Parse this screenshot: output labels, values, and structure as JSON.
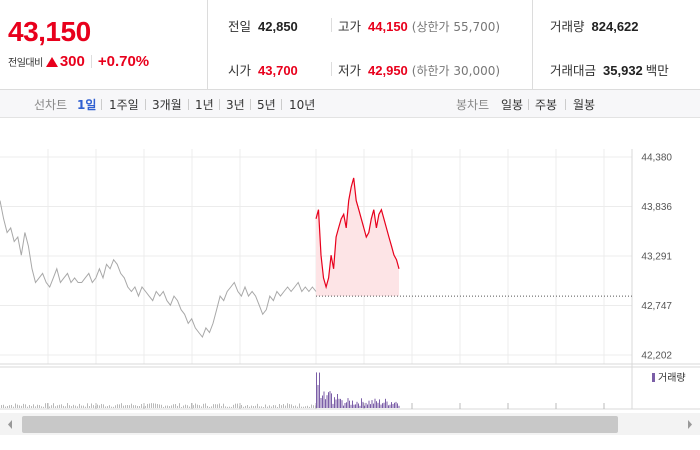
{
  "summary": {
    "price": "43,150",
    "change_label": "전일대비",
    "change_amount": "300",
    "change_percent": "+0.70%",
    "prev_close": {
      "label": "전일",
      "value": "42,850"
    },
    "open": {
      "label": "시가",
      "value": "43,700"
    },
    "high": {
      "label": "고가",
      "value": "44,150",
      "sub": "(상한가 55,700)"
    },
    "low": {
      "label": "저가",
      "value": "42,950",
      "sub": "(하한가 30,000)"
    },
    "volume": {
      "label": "거래량",
      "value": "824,622"
    },
    "trade_value": {
      "label": "거래대금",
      "value": "35,932",
      "unit": "백만"
    }
  },
  "toolbar": {
    "line_chart_label": "선차트",
    "periods": [
      "1일",
      "1주일",
      "3개월",
      "1년",
      "3년",
      "5년",
      "10년"
    ],
    "active_period": "1일",
    "candle_chart_label": "봉차트",
    "candle_periods": [
      "일봉",
      "주봉",
      "월봉"
    ]
  },
  "colors": {
    "up": "#e8001c",
    "active_tab": "#2f5fd1",
    "volume": "#7b5ea7",
    "line_prior": "#a8a8a8"
  },
  "chart_data": {
    "type": "line",
    "y_ticks": [
      "44,380",
      "43,836",
      "43,291",
      "42,747",
      "42,202"
    ],
    "ylim": [
      42202,
      44380
    ],
    "baseline": 42850,
    "volume_legend": "거래량",
    "grid": true,
    "series": [
      {
        "values": [
          43900,
          43700,
          43550,
          43600,
          43450,
          43500,
          43300,
          43550,
          43400,
          43150,
          43000,
          43050,
          43100,
          43000,
          42950,
          43050,
          43150,
          43000,
          43050,
          43100,
          43000,
          43050,
          43000,
          43000,
          43050,
          43100,
          43000,
          43050,
          43150,
          43050,
          43200,
          43150,
          43250,
          43200,
          43100,
          43050,
          42950,
          42900,
          42950,
          42850,
          42950,
          42900,
          42850,
          42800,
          42900,
          42850,
          42900,
          42800,
          42750,
          42850,
          42800,
          42700,
          42650,
          42550,
          42600,
          42500,
          42450,
          42400,
          42500,
          42450,
          42550,
          42700,
          42850,
          42800,
          42900,
          42950,
          43000,
          42900,
          42850,
          42950,
          42850,
          42900,
          42850,
          42750,
          42650,
          42700,
          42850,
          42800,
          42900,
          42850,
          42900,
          42950,
          42900,
          42950,
          43000,
          42900,
          42950,
          42900,
          42950,
          42900
        ]
      },
      {
        "values": [
          43700,
          43800,
          43300,
          43050,
          42950,
          43050,
          43300,
          43150,
          43500,
          43600,
          43700,
          43750,
          43600,
          43900,
          44050,
          44150,
          43900,
          43800,
          43700,
          43600,
          43500,
          43550,
          43700,
          43800,
          43600,
          43750,
          43800,
          43700,
          43600,
          43500,
          43400,
          43300,
          43250,
          43150
        ]
      }
    ]
  }
}
